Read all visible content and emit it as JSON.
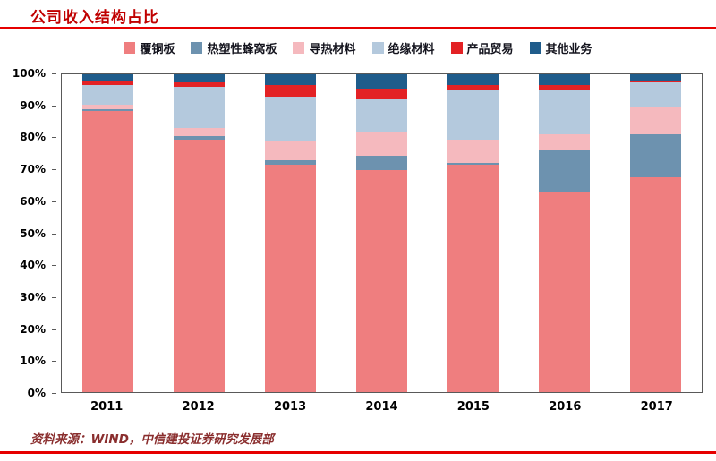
{
  "header": {
    "title": "公司收入结构占比"
  },
  "footer": {
    "source": "资料来源：WIND，中信建投证券研究发展部"
  },
  "accent": {
    "rule_color": "#e60000",
    "title_color": "#c00000"
  },
  "chart_data": {
    "type": "bar",
    "stacked": true,
    "stacked_100_percent": true,
    "title": "公司收入结构占比",
    "xlabel": "",
    "ylabel": "",
    "ylim": [
      0,
      100
    ],
    "ytick_step": 10,
    "ytick_labels": [
      "0%",
      "10%",
      "20%",
      "30%",
      "40%",
      "50%",
      "60%",
      "70%",
      "80%",
      "90%",
      "100%"
    ],
    "grid": false,
    "legend_position": "top",
    "categories": [
      "2011",
      "2012",
      "2013",
      "2014",
      "2015",
      "2016",
      "2017"
    ],
    "series": [
      {
        "name": "覆铜板",
        "color": "#ef7e7f",
        "values": [
          88.5,
          79.5,
          71.5,
          70.0,
          71.5,
          63.0,
          67.5
        ]
      },
      {
        "name": "热塑性蜂窝板",
        "color": "#6d92af",
        "values": [
          0.5,
          1.0,
          1.5,
          4.5,
          0.5,
          13.0,
          13.5
        ]
      },
      {
        "name": "导热材料",
        "color": "#f5b9be",
        "values": [
          1.5,
          2.5,
          6.0,
          7.5,
          7.5,
          5.0,
          8.5
        ]
      },
      {
        "name": "绝缘材料",
        "color": "#b4c9dd",
        "values": [
          6.0,
          13.0,
          14.0,
          10.0,
          15.5,
          14.0,
          8.0
        ]
      },
      {
        "name": "产品贸易",
        "color": "#e32225",
        "values": [
          1.5,
          1.5,
          3.5,
          3.5,
          1.5,
          1.5,
          0.5
        ]
      },
      {
        "name": "其他业务",
        "color": "#1f5c8b",
        "values": [
          2.0,
          2.5,
          3.5,
          4.5,
          3.5,
          3.5,
          2.0
        ]
      }
    ]
  }
}
